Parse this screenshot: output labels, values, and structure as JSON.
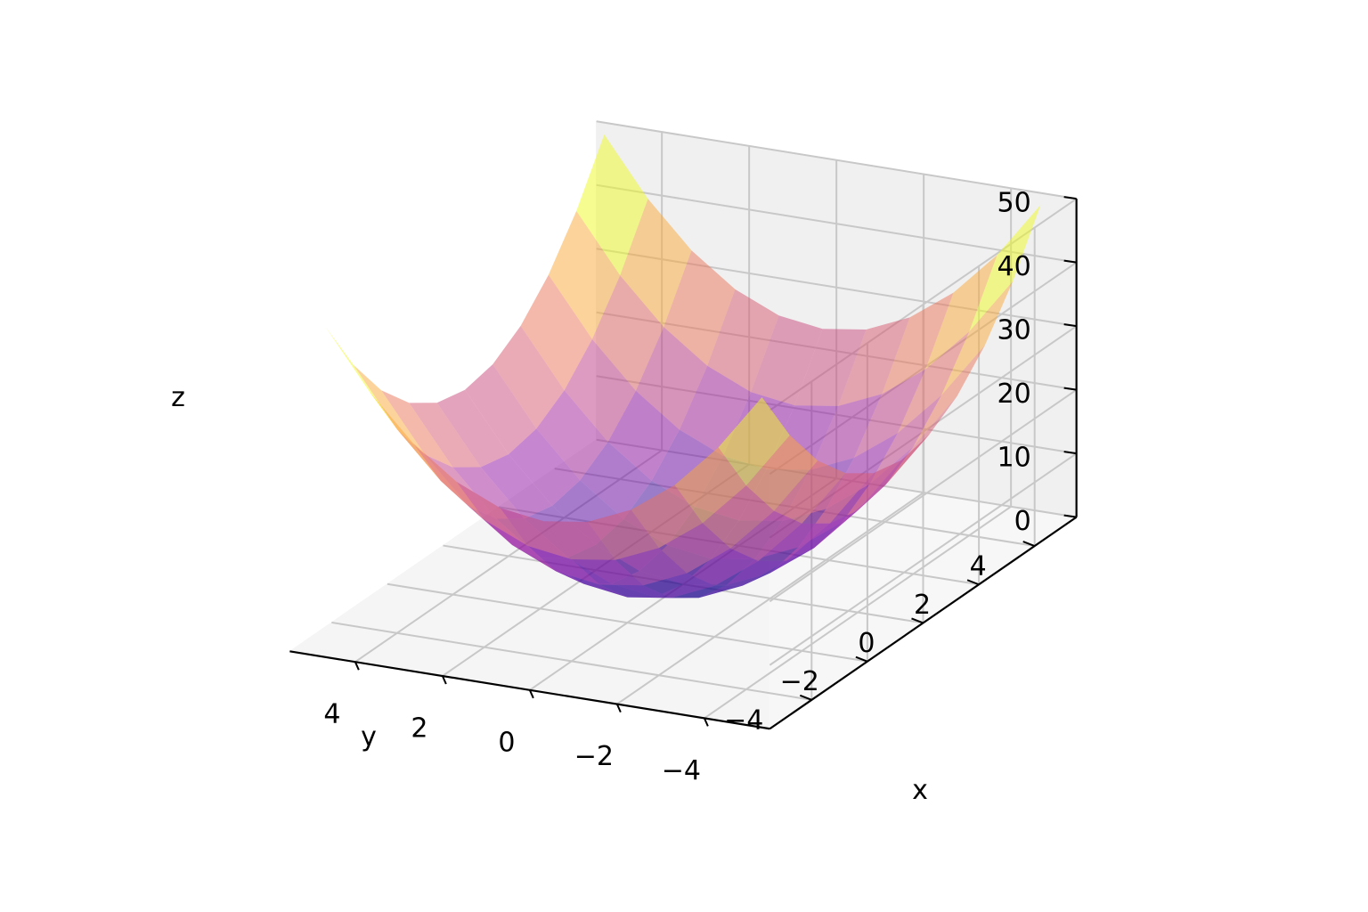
{
  "chart_data": {
    "type": "surface",
    "function": "z = x^2 + y^2",
    "x_range": [
      -5,
      5
    ],
    "y_range": [
      -5,
      5
    ],
    "grid_steps": 10,
    "x": [
      -5,
      -4,
      -3,
      -2,
      -1,
      0,
      1,
      2,
      3,
      4,
      5
    ],
    "y": [
      -5,
      -4,
      -3,
      -2,
      -1,
      0,
      1,
      2,
      3,
      4,
      5
    ],
    "zlim": [
      0,
      50
    ],
    "xlabel": "x",
    "ylabel": "y",
    "zlabel": "z",
    "x_ticks": [
      {
        "value": 4,
        "label": "4"
      },
      {
        "value": 2,
        "label": "2"
      },
      {
        "value": 0,
        "label": "0"
      },
      {
        "value": -2,
        "label": "−2"
      },
      {
        "value": -4,
        "label": "−4"
      }
    ],
    "y_ticks": [
      {
        "value": -4,
        "label": "−4"
      },
      {
        "value": -2,
        "label": "−2"
      },
      {
        "value": 0,
        "label": "0"
      },
      {
        "value": 2,
        "label": "2"
      },
      {
        "value": 4,
        "label": "4"
      }
    ],
    "z_ticks": [
      {
        "value": 0,
        "label": "0"
      },
      {
        "value": 10,
        "label": "10"
      },
      {
        "value": 20,
        "label": "20"
      },
      {
        "value": 30,
        "label": "30"
      },
      {
        "value": 40,
        "label": "40"
      },
      {
        "value": 50,
        "label": "50"
      }
    ],
    "colormap": "plasma",
    "surface_alpha": 0.5,
    "grid": true,
    "pane_color": "#f2f2f2",
    "grid_color": "#c8c8c8"
  }
}
